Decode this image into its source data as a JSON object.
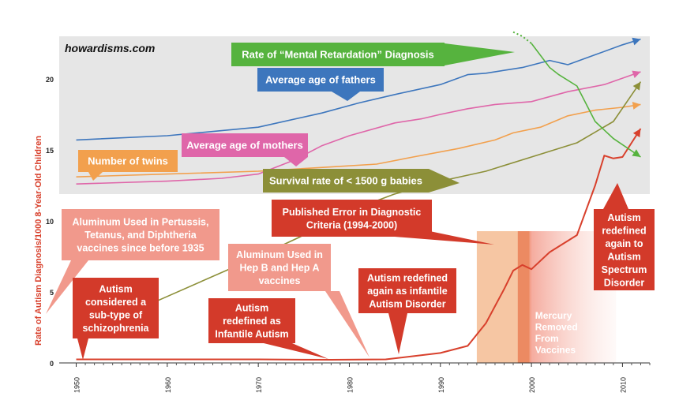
{
  "watermark": "howardisms.com",
  "ylabel": "Rate of Autism Diagnosis/1000 8-Year-Old Children",
  "colors": {
    "autism": "#d8402c",
    "fathers": "#3d76bd",
    "mothers": "#df66a9",
    "twins": "#f2a04d",
    "survival": "#8c8f38",
    "mental": "#56b33e",
    "panel": "#e6e6e6",
    "callout": "#d33a2a",
    "callout_light": "#f1998c",
    "band": "#f5c39e",
    "band_dark": "#ec8a62"
  },
  "chart_data": {
    "type": "line",
    "title": "",
    "xlabel": "",
    "ylabel": "Rate of Autism Diagnosis/1000 8-Year-Old Children",
    "x_ticks": [
      1950,
      1960,
      1970,
      1980,
      1990,
      2000,
      2010
    ],
    "y_ticks": [
      0,
      5,
      10,
      15,
      20
    ],
    "xlim": [
      1949,
      2013
    ],
    "ylim": [
      0,
      23
    ],
    "grid": false,
    "series": [
      {
        "key": "autism",
        "name": "Rate of Autism Diagnosis",
        "points": [
          [
            1950,
            0.25
          ],
          [
            1960,
            0.25
          ],
          [
            1970,
            0.25
          ],
          [
            1978,
            0.22
          ],
          [
            1984,
            0.25
          ],
          [
            1990,
            0.7
          ],
          [
            1993,
            1.2
          ],
          [
            1995,
            2.8
          ],
          [
            1997,
            5.2
          ],
          [
            1998,
            6.5
          ],
          [
            1999,
            6.9
          ],
          [
            2000,
            6.6
          ],
          [
            2002,
            7.8
          ],
          [
            2005,
            9.0
          ],
          [
            2007,
            12.5
          ],
          [
            2008,
            14.6
          ],
          [
            2009,
            14.4
          ],
          [
            2010,
            14.5
          ],
          [
            2011,
            15.5
          ],
          [
            2012,
            16.5
          ]
        ]
      },
      {
        "key": "fathers",
        "name": "Average age of fathers",
        "points": [
          [
            1950,
            15.7
          ],
          [
            1960,
            16.0
          ],
          [
            1970,
            16.6
          ],
          [
            1977,
            17.6
          ],
          [
            1981,
            18.3
          ],
          [
            1985,
            18.9
          ],
          [
            1990,
            19.6
          ],
          [
            1993,
            20.3
          ],
          [
            1995,
            20.4
          ],
          [
            1999,
            20.8
          ],
          [
            2002,
            21.3
          ],
          [
            2004,
            21.0
          ],
          [
            2007,
            21.7
          ],
          [
            2010,
            22.4
          ],
          [
            2012,
            22.8
          ]
        ]
      },
      {
        "key": "mothers",
        "name": "Average age of mothers",
        "points": [
          [
            1950,
            12.6
          ],
          [
            1960,
            12.8
          ],
          [
            1966,
            13.0
          ],
          [
            1970,
            13.3
          ],
          [
            1974,
            14.3
          ],
          [
            1977,
            15.3
          ],
          [
            1980,
            16.0
          ],
          [
            1985,
            16.9
          ],
          [
            1988,
            17.2
          ],
          [
            1990,
            17.5
          ],
          [
            1993,
            17.9
          ],
          [
            1996,
            18.2
          ],
          [
            2000,
            18.4
          ],
          [
            2004,
            19.1
          ],
          [
            2008,
            19.6
          ],
          [
            2012,
            20.5
          ]
        ]
      },
      {
        "key": "twins",
        "name": "Number of twins",
        "points": [
          [
            1950,
            13.1
          ],
          [
            1960,
            13.3
          ],
          [
            1970,
            13.5
          ],
          [
            1978,
            13.8
          ],
          [
            1983,
            14.0
          ],
          [
            1987,
            14.5
          ],
          [
            1992,
            15.1
          ],
          [
            1996,
            15.7
          ],
          [
            1998,
            16.2
          ],
          [
            2001,
            16.6
          ],
          [
            2004,
            17.4
          ],
          [
            2007,
            17.8
          ],
          [
            2010,
            18.0
          ],
          [
            2012,
            18.2
          ]
        ]
      },
      {
        "key": "survival",
        "name": "Survival rate of < 1500 g babies",
        "points": [
          [
            1959,
            4.4
          ],
          [
            1970,
            7.5
          ],
          [
            1975,
            9.0
          ],
          [
            1980,
            10.7
          ],
          [
            1985,
            11.9
          ],
          [
            1990,
            12.8
          ],
          [
            1995,
            13.5
          ],
          [
            2000,
            14.5
          ],
          [
            2005,
            15.5
          ],
          [
            2009,
            17.0
          ],
          [
            2012,
            19.8
          ]
        ]
      },
      {
        "key": "mental",
        "name": "Rate of “Mental Retardation” Diagnosis",
        "points": [
          [
            1998,
            23.3
          ],
          [
            1999,
            23.0
          ],
          [
            2000,
            22.5
          ],
          [
            2002,
            20.8
          ],
          [
            2003,
            20.3
          ],
          [
            2005,
            19.5
          ],
          [
            2007,
            17.0
          ],
          [
            2009,
            15.8
          ],
          [
            2012,
            14.5
          ]
        ]
      }
    ],
    "callouts": {
      "mental": "Rate of “Mental Retardation” Diagnosis",
      "fathers": "Average age of fathers",
      "mothers": "Average age of mothers",
      "twins": "Number of twins",
      "survival": "Survival rate of < 1500 g babies",
      "aluminum1": [
        "Aluminum Used in Pertussis,",
        "Tetanus, and Diphtheria",
        "vaccines since before 1935"
      ],
      "aluminum2": [
        "Aluminum Used in",
        "Hep B and Hep A",
        "vaccines"
      ],
      "error": [
        "Published Error in Diagnostic",
        "Criteria (1994-2000)"
      ],
      "schizo": [
        "Autism",
        "considered a",
        "sub-type of",
        "schizophrenia"
      ],
      "infantile": [
        "Autism",
        "redefined as",
        "Infantile Autism"
      ],
      "infantile_disorder": [
        "Autism redefined",
        "again as infantile",
        "Autism Disorder"
      ],
      "spectrum": [
        "Autism",
        "redefined",
        "again to",
        "Autism",
        "Spectrum",
        "Disorder"
      ],
      "mercury": [
        "Mercury",
        "Removed",
        "From",
        "Vaccines"
      ]
    }
  }
}
